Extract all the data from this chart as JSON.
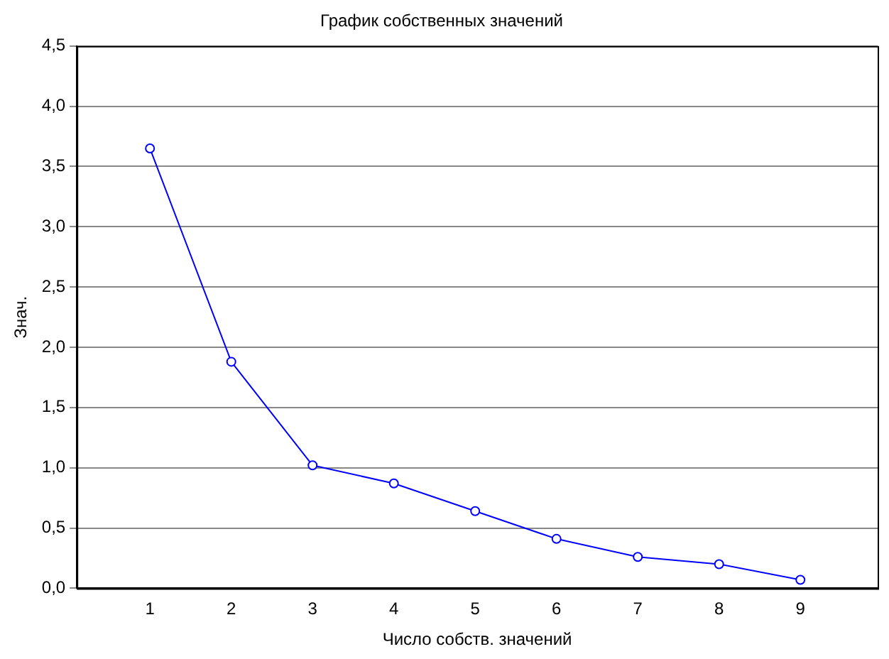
{
  "chart_data": {
    "type": "line",
    "title": "График собственных значений",
    "xlabel": "Число собств. значений",
    "ylabel": "Знач.",
    "x": [
      1,
      2,
      3,
      4,
      5,
      6,
      7,
      8,
      9
    ],
    "series": [
      {
        "color": "#0000ff",
        "values": [
          3.65,
          1.88,
          1.02,
          0.87,
          0.64,
          0.41,
          0.26,
          0.2,
          0.07
        ]
      }
    ],
    "xlim": [
      0.1,
      9.95
    ],
    "xticks": [
      1,
      2,
      3,
      4,
      5,
      6,
      7,
      8,
      9
    ],
    "ylim": [
      0,
      4.5
    ],
    "yticks": [
      {
        "value": 0,
        "label": "0,0"
      },
      {
        "value": 0.5,
        "label": "0,5"
      },
      {
        "value": 1,
        "label": "1,0"
      },
      {
        "value": 1.5,
        "label": "1,5"
      },
      {
        "value": 2,
        "label": "2,0"
      },
      {
        "value": 2.5,
        "label": "2,5"
      },
      {
        "value": 3,
        "label": "3,0"
      },
      {
        "value": 3.5,
        "label": "3,5"
      },
      {
        "value": 4,
        "label": "4,0"
      },
      {
        "value": 4.5,
        "label": "4,5"
      }
    ],
    "grid": "y",
    "legend": false,
    "marker": "circle",
    "line_style": "solid"
  }
}
